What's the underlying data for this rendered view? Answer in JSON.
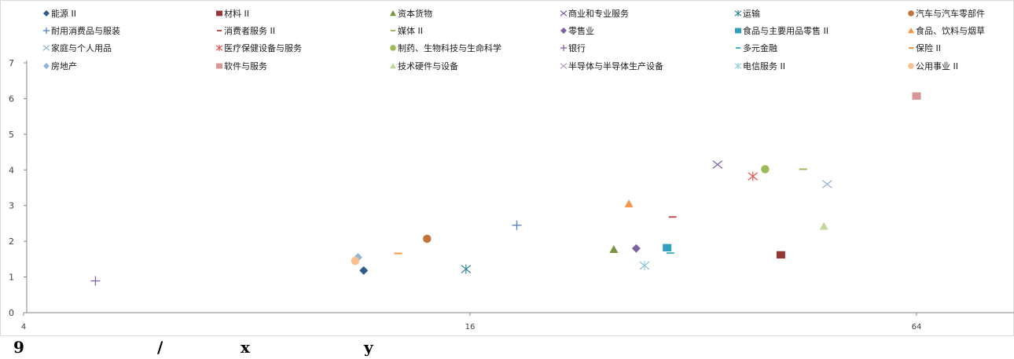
{
  "chart_data": {
    "type": "scatter",
    "x_scale": "log2",
    "xlim": [
      4,
      128
    ],
    "ylim": [
      0,
      7
    ],
    "x_ticks": [
      "4",
      "16",
      "64"
    ],
    "y_ticks": [
      "0",
      "1",
      "2",
      "3",
      "4",
      "5",
      "6",
      "7"
    ],
    "grid": false,
    "legend_position": "top",
    "series": [
      {
        "name": "能源 II",
        "x": 11.5,
        "y": 1.18,
        "marker": "diamond",
        "color": "#2e5b8e"
      },
      {
        "name": "材料 II",
        "x": 42.0,
        "y": 1.62,
        "marker": "square",
        "color": "#953735"
      },
      {
        "name": "资本货物",
        "x": 25.0,
        "y": 1.77,
        "marker": "triangle",
        "color": "#77933c"
      },
      {
        "name": "商业和专业服务",
        "x": 34.5,
        "y": 4.15,
        "marker": "x",
        "color": "#8064a2"
      },
      {
        "name": "运输",
        "x": 15.8,
        "y": 1.22,
        "marker": "star",
        "color": "#31859c"
      },
      {
        "name": "汽车与汽车零部件",
        "x": 14.0,
        "y": 2.07,
        "marker": "circle",
        "color": "#c0743c"
      },
      {
        "name": "耐用消费品与服装",
        "x": 18.5,
        "y": 2.45,
        "marker": "plus",
        "color": "#4f81bd"
      },
      {
        "name": "消费者服务 II",
        "x": 30.0,
        "y": 2.68,
        "marker": "dash",
        "color": "#c0504d"
      },
      {
        "name": "媒体 II",
        "x": 45.0,
        "y": 4.02,
        "marker": "dash",
        "color": "#9bbb59"
      },
      {
        "name": "零售业",
        "x": 26.8,
        "y": 1.8,
        "marker": "diamond",
        "color": "#7e62a1"
      },
      {
        "name": "食品与主要用品零售 II",
        "x": 29.5,
        "y": 1.82,
        "marker": "square",
        "color": "#31a0c0"
      },
      {
        "name": "食品、饮料与烟草",
        "x": 26.2,
        "y": 3.05,
        "marker": "triangle",
        "color": "#f79646"
      },
      {
        "name": "家庭与个人用品",
        "x": 48.5,
        "y": 3.6,
        "marker": "x",
        "color": "#95b3d7"
      },
      {
        "name": "医疗保健设备与服务",
        "x": 38.5,
        "y": 3.82,
        "marker": "star",
        "color": "#e5524d"
      },
      {
        "name": "制药、生物科技与生命科学",
        "x": 40.0,
        "y": 4.02,
        "marker": "circle",
        "color": "#9bbb59"
      },
      {
        "name": "银行",
        "x": 5.0,
        "y": 0.89,
        "marker": "plus",
        "color": "#8064a2"
      },
      {
        "name": "多元金融",
        "x": 29.8,
        "y": 1.67,
        "marker": "dash",
        "color": "#4bacc6"
      },
      {
        "name": "保险 II",
        "x": 12.8,
        "y": 1.66,
        "marker": "dash",
        "color": "#f79646"
      },
      {
        "name": "房地产",
        "x": 11.3,
        "y": 1.55,
        "marker": "diamond",
        "color": "#95b3d7"
      },
      {
        "name": "软件与服务",
        "x": 64.0,
        "y": 6.07,
        "marker": "square",
        "color": "#d99694"
      },
      {
        "name": "技术硬件与设备",
        "x": 48.0,
        "y": 2.42,
        "marker": "triangle",
        "color": "#c3d69b"
      },
      {
        "name": "半导体与半导体生产设备",
        "x": 27.5,
        "y": 1.32,
        "marker": "x",
        "color": "#b3a2c7"
      },
      {
        "name": "电信服务 II",
        "x": 27.5,
        "y": 1.32,
        "marker": "star",
        "color": "#93cddd"
      },
      {
        "name": "公用事业 II",
        "x": 11.2,
        "y": 1.45,
        "marker": "circle",
        "color": "#fabf8f"
      }
    ]
  },
  "caption": {
    "part1": "9",
    "part2": "/",
    "part3": "x",
    "part4": "y"
  }
}
